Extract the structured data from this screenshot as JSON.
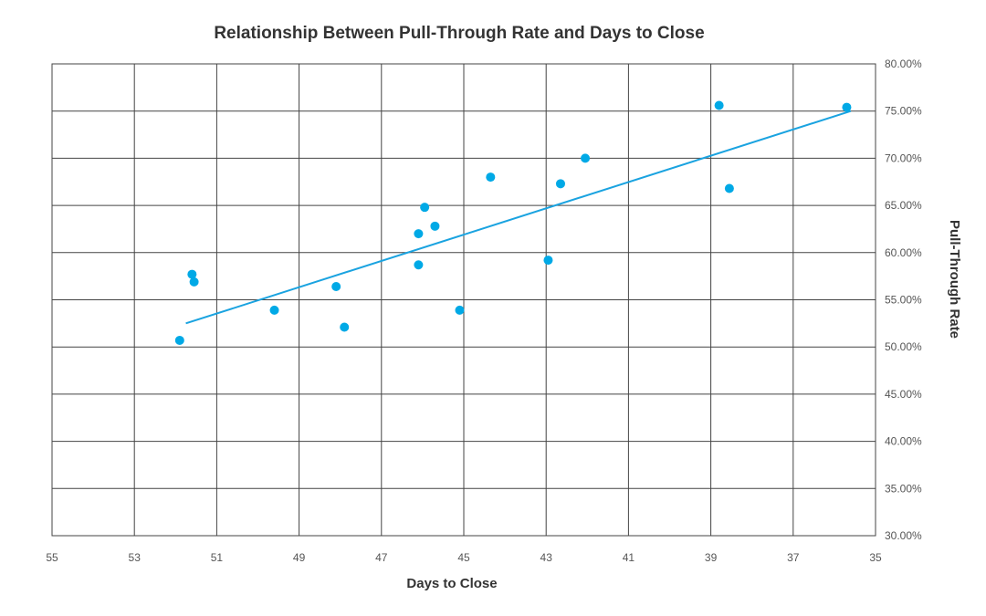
{
  "chart_data": {
    "type": "scatter",
    "title": "Relationship Between Pull-Through Rate and Days to Close",
    "xlabel": "Days to Close",
    "ylabel": "Pull-Through Rate",
    "xlim": [
      55,
      35
    ],
    "ylim": [
      30,
      80
    ],
    "x_reversed": true,
    "x_ticks": [
      55,
      53,
      51,
      49,
      47,
      45,
      43,
      41,
      39,
      37,
      35
    ],
    "x_tick_labels": [
      "55",
      "53",
      "51",
      "49",
      "47",
      "45",
      "43",
      "41",
      "39",
      "37",
      "35"
    ],
    "y_ticks": [
      30,
      35,
      40,
      45,
      50,
      55,
      60,
      65,
      70,
      75,
      80
    ],
    "y_tick_labels": [
      "30.00%",
      "35.00%",
      "40.00%",
      "45.00%",
      "50.00%",
      "55.00%",
      "60.00%",
      "65.00%",
      "70.00%",
      "75.00%",
      "80.00%"
    ],
    "y_axis_position": "right",
    "grid": true,
    "series": [
      {
        "name": "Pull-Through Rate",
        "color": "#00a9e6",
        "points": [
          {
            "x": 51.9,
            "y": 50.7
          },
          {
            "x": 51.6,
            "y": 57.7
          },
          {
            "x": 51.55,
            "y": 56.9
          },
          {
            "x": 49.6,
            "y": 53.9
          },
          {
            "x": 48.1,
            "y": 56.4
          },
          {
            "x": 47.9,
            "y": 52.1
          },
          {
            "x": 46.1,
            "y": 58.7
          },
          {
            "x": 46.1,
            "y": 62.0
          },
          {
            "x": 45.95,
            "y": 64.8
          },
          {
            "x": 45.7,
            "y": 62.8
          },
          {
            "x": 45.1,
            "y": 53.9
          },
          {
            "x": 44.35,
            "y": 68.0
          },
          {
            "x": 42.95,
            "y": 59.2
          },
          {
            "x": 42.65,
            "y": 67.3
          },
          {
            "x": 42.05,
            "y": 70.0
          },
          {
            "x": 38.8,
            "y": 75.6
          },
          {
            "x": 38.55,
            "y": 66.8
          },
          {
            "x": 35.7,
            "y": 75.4
          }
        ]
      }
    ],
    "trendline": {
      "type": "linear",
      "color": "#1aa3e0",
      "x_start": 51.75,
      "y_start": 52.5,
      "x_end": 35.6,
      "y_end": 75.0
    }
  }
}
